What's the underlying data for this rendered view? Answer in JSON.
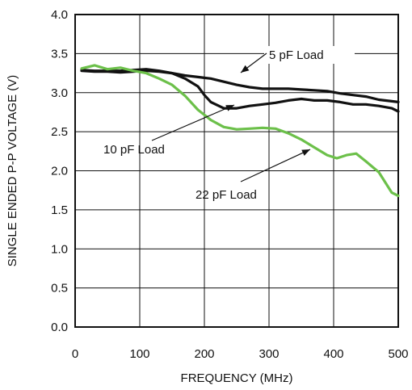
{
  "chart_data": {
    "type": "line",
    "xlabel": "FREQUENCY (MHz)",
    "ylabel": "SINGLE ENDED P-P VOLTAGE (V)",
    "xlim": [
      0,
      500
    ],
    "ylim": [
      0,
      4.0
    ],
    "x_ticks": [
      "0",
      "100",
      "200",
      "300",
      "400",
      "500"
    ],
    "y_ticks": [
      "0.0",
      "0.5",
      "1.0",
      "1.5",
      "2.0",
      "2.5",
      "3.0",
      "3.5",
      "4.0"
    ],
    "grid": true,
    "series": [
      {
        "name": "5 pF Load",
        "color": "#111111",
        "x": [
          10,
          30,
          50,
          70,
          90,
          110,
          130,
          150,
          170,
          190,
          210,
          230,
          250,
          270,
          290,
          310,
          330,
          350,
          370,
          390,
          410,
          430,
          450,
          470,
          490,
          500
        ],
        "y": [
          3.28,
          3.27,
          3.27,
          3.26,
          3.27,
          3.28,
          3.27,
          3.25,
          3.22,
          3.2,
          3.18,
          3.14,
          3.1,
          3.07,
          3.05,
          3.05,
          3.05,
          3.04,
          3.03,
          3.02,
          2.99,
          2.97,
          2.95,
          2.91,
          2.89,
          2.88
        ]
      },
      {
        "name": "10 pF Load",
        "color": "#111111",
        "x": [
          10,
          30,
          50,
          70,
          90,
          110,
          130,
          150,
          170,
          190,
          200,
          210,
          230,
          250,
          270,
          290,
          310,
          330,
          350,
          370,
          390,
          410,
          430,
          450,
          470,
          490,
          500
        ],
        "y": [
          3.29,
          3.28,
          3.28,
          3.28,
          3.29,
          3.3,
          3.28,
          3.25,
          3.18,
          3.08,
          2.97,
          2.88,
          2.8,
          2.8,
          2.83,
          2.85,
          2.87,
          2.9,
          2.92,
          2.9,
          2.9,
          2.88,
          2.85,
          2.85,
          2.83,
          2.8,
          2.76
        ]
      },
      {
        "name": "22 pF Load",
        "color": "#6cc04a",
        "x": [
          10,
          30,
          50,
          70,
          90,
          110,
          130,
          150,
          170,
          190,
          210,
          230,
          250,
          270,
          290,
          310,
          330,
          350,
          370,
          390,
          405,
          420,
          435,
          450,
          470,
          490,
          500
        ],
        "y": [
          3.31,
          3.35,
          3.3,
          3.32,
          3.28,
          3.25,
          3.18,
          3.1,
          2.96,
          2.78,
          2.65,
          2.56,
          2.53,
          2.54,
          2.55,
          2.54,
          2.48,
          2.4,
          2.3,
          2.2,
          2.16,
          2.2,
          2.22,
          2.12,
          1.98,
          1.72,
          1.68
        ]
      }
    ],
    "annotations": [
      {
        "text": "5 pF Load",
        "series": "5 pF Load"
      },
      {
        "text": "10 pF Load",
        "series": "10 pF Load"
      },
      {
        "text": "22 pF Load",
        "series": "22 pF Load"
      }
    ]
  }
}
